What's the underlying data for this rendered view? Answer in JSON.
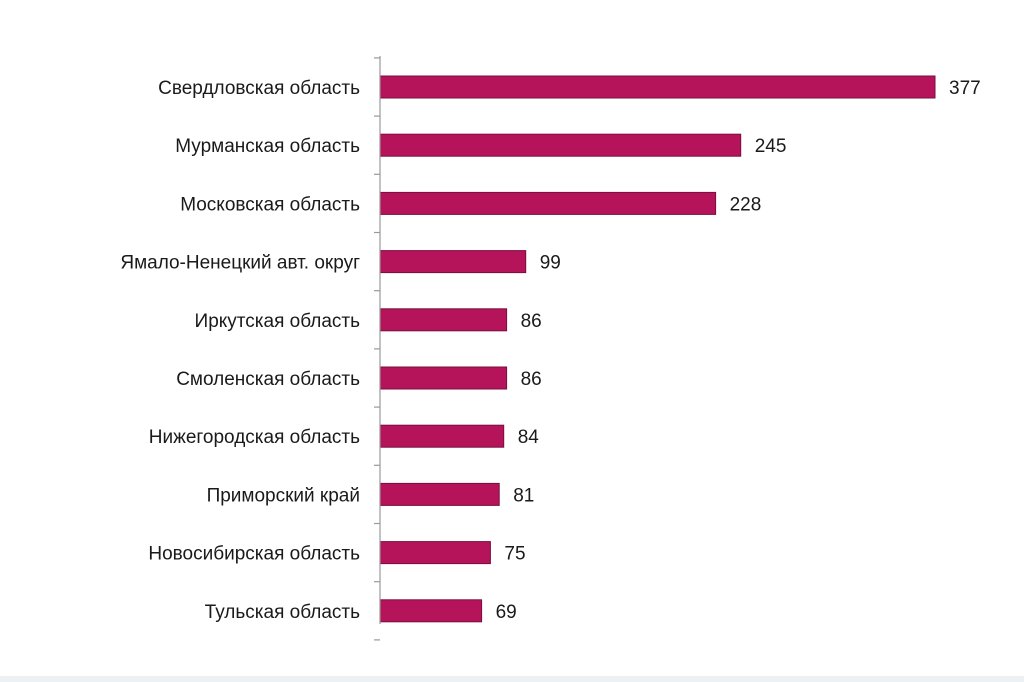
{
  "chart_data": {
    "type": "bar",
    "orientation": "horizontal",
    "title": "",
    "xlabel": "",
    "ylabel": "",
    "categories": [
      "Свердловская область",
      "Мурманская область",
      "Московская область",
      "Ямало-Ненецкий авт. округ",
      "Иркутская область",
      "Смоленская область",
      "Нижегородская область",
      "Приморский край",
      "Новосибирская область",
      "Тульская область"
    ],
    "values": [
      377,
      245,
      228,
      99,
      86,
      86,
      84,
      81,
      75,
      69
    ],
    "value_labels": [
      "377",
      "245",
      "228",
      "99",
      "86",
      "86",
      "84",
      "81",
      "75",
      "69"
    ],
    "xlim": [
      0,
      377
    ],
    "grid": false,
    "legend": "none",
    "bar_color": "#b5145b",
    "bar_edge_color": "#7a0e3d",
    "axis_color": "#9a9a9a"
  }
}
